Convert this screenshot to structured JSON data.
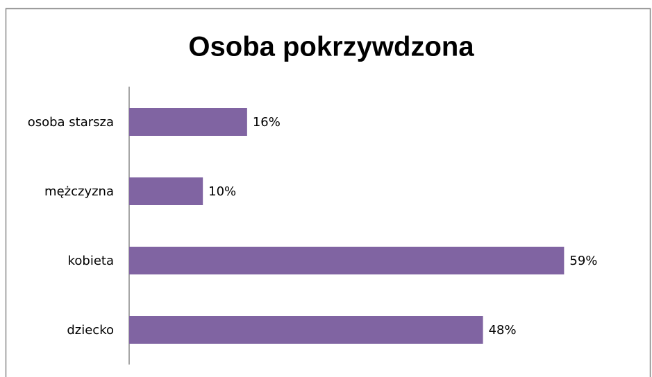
{
  "chart_data": {
    "type": "hbar",
    "title": "Osoba pokrzywdzona",
    "categories": [
      "osoba starsza",
      "mężczyzna",
      "kobieta",
      "dziecko"
    ],
    "values": [
      16,
      10,
      59,
      48
    ],
    "value_labels": [
      "16%",
      "10%",
      "59%",
      "48%"
    ],
    "color": "#8064a2",
    "xlim": [
      0,
      60
    ]
  }
}
